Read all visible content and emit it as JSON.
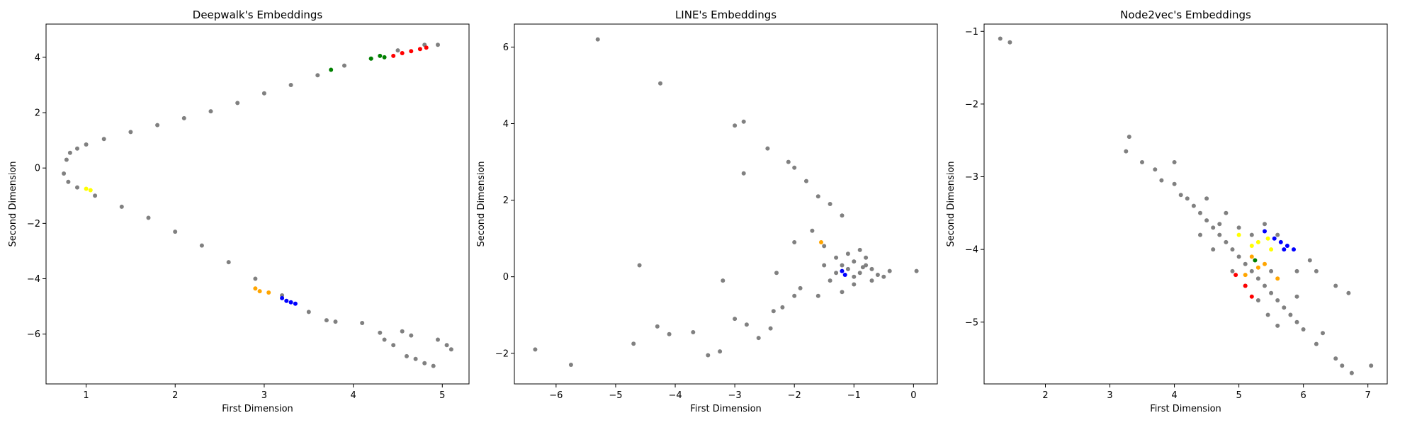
{
  "chart_data": [
    {
      "type": "scatter",
      "title": "Deepwalk's Embeddings",
      "xlabel": "First Dimension",
      "ylabel": "Second Dimension",
      "xlim": [
        0.55,
        5.3
      ],
      "ylim": [
        -7.8,
        5.2
      ],
      "xticks": [
        1,
        2,
        3,
        4,
        5
      ],
      "yticks": [
        -6,
        -4,
        -2,
        0,
        2,
        4
      ],
      "series": [
        {
          "color": "#808080",
          "points": [
            [
              0.78,
              0.3
            ],
            [
              0.82,
              0.55
            ],
            [
              0.9,
              0.7
            ],
            [
              1.0,
              0.85
            ],
            [
              1.2,
              1.05
            ],
            [
              1.5,
              1.3
            ],
            [
              1.8,
              1.55
            ],
            [
              2.1,
              1.8
            ],
            [
              2.4,
              2.05
            ],
            [
              2.7,
              2.35
            ],
            [
              3.0,
              2.7
            ],
            [
              3.3,
              3.0
            ],
            [
              3.6,
              3.35
            ],
            [
              3.9,
              3.7
            ],
            [
              4.2,
              3.95
            ],
            [
              4.5,
              4.25
            ],
            [
              4.8,
              4.45
            ],
            [
              4.95,
              4.45
            ],
            [
              0.75,
              -0.2
            ],
            [
              0.8,
              -0.5
            ],
            [
              0.9,
              -0.7
            ],
            [
              1.1,
              -1.0
            ],
            [
              1.4,
              -1.4
            ],
            [
              1.7,
              -1.8
            ],
            [
              2.0,
              -2.3
            ],
            [
              2.3,
              -2.8
            ],
            [
              2.6,
              -3.4
            ],
            [
              2.9,
              -4.0
            ],
            [
              3.2,
              -4.6
            ],
            [
              3.5,
              -5.2
            ],
            [
              3.7,
              -5.5
            ],
            [
              3.8,
              -5.55
            ],
            [
              4.1,
              -5.6
            ],
            [
              4.3,
              -5.95
            ],
            [
              4.35,
              -6.2
            ],
            [
              4.45,
              -6.4
            ],
            [
              4.55,
              -5.9
            ],
            [
              4.6,
              -6.8
            ],
            [
              4.7,
              -6.9
            ],
            [
              4.8,
              -7.05
            ],
            [
              4.9,
              -7.15
            ],
            [
              4.95,
              -6.2
            ],
            [
              5.05,
              -6.4
            ],
            [
              5.1,
              -6.55
            ],
            [
              4.65,
              -6.05
            ]
          ]
        },
        {
          "color": "#ff0000",
          "points": [
            [
              4.45,
              4.05
            ],
            [
              4.55,
              4.15
            ],
            [
              4.65,
              4.22
            ],
            [
              4.75,
              4.3
            ],
            [
              4.82,
              4.35
            ]
          ]
        },
        {
          "color": "#008000",
          "points": [
            [
              3.75,
              3.55
            ],
            [
              4.2,
              3.95
            ],
            [
              4.3,
              4.05
            ],
            [
              4.35,
              4.0
            ]
          ]
        },
        {
          "color": "#0000ff",
          "points": [
            [
              3.2,
              -4.7
            ],
            [
              3.25,
              -4.8
            ],
            [
              3.3,
              -4.85
            ],
            [
              3.35,
              -4.9
            ]
          ]
        },
        {
          "color": "#ffa500",
          "points": [
            [
              2.9,
              -4.35
            ],
            [
              2.95,
              -4.45
            ],
            [
              3.05,
              -4.5
            ]
          ]
        },
        {
          "color": "#ffff00",
          "points": [
            [
              1.0,
              -0.75
            ],
            [
              1.05,
              -0.8
            ]
          ]
        }
      ]
    },
    {
      "type": "scatter",
      "title": "LINE's Embeddings",
      "xlabel": "First Dimension",
      "ylabel": "Second Dimension",
      "xlim": [
        -6.7,
        0.4
      ],
      "ylim": [
        -2.8,
        6.6
      ],
      "xticks": [
        -6,
        -5,
        -4,
        -3,
        -2,
        -1,
        0
      ],
      "yticks": [
        -2,
        0,
        2,
        4,
        6
      ],
      "series": [
        {
          "color": "#808080",
          "points": [
            [
              -5.3,
              6.2
            ],
            [
              -4.25,
              5.05
            ],
            [
              -3.0,
              3.95
            ],
            [
              -2.85,
              4.05
            ],
            [
              -2.85,
              2.7
            ],
            [
              -6.35,
              -1.9
            ],
            [
              -5.75,
              -2.3
            ],
            [
              -4.6,
              0.3
            ],
            [
              -4.7,
              -1.75
            ],
            [
              -4.3,
              -1.3
            ],
            [
              -4.1,
              -1.5
            ],
            [
              -3.7,
              -1.45
            ],
            [
              -3.45,
              -2.05
            ],
            [
              -3.2,
              -0.1
            ],
            [
              -3.25,
              -1.95
            ],
            [
              -3.0,
              -1.1
            ],
            [
              -2.8,
              -1.25
            ],
            [
              -2.6,
              -1.6
            ],
            [
              -2.4,
              -1.35
            ],
            [
              -2.35,
              -0.9
            ],
            [
              -2.2,
              -0.8
            ],
            [
              -2.0,
              -0.5
            ],
            [
              -1.9,
              -0.3
            ],
            [
              -1.6,
              -0.5
            ],
            [
              -2.45,
              3.35
            ],
            [
              -2.1,
              3.0
            ],
            [
              -2.0,
              2.85
            ],
            [
              -1.8,
              2.5
            ],
            [
              -1.6,
              2.1
            ],
            [
              -1.4,
              1.9
            ],
            [
              -1.2,
              1.6
            ],
            [
              -2.3,
              0.1
            ],
            [
              -2.0,
              0.9
            ],
            [
              -1.7,
              1.2
            ],
            [
              -1.5,
              0.8
            ],
            [
              -1.3,
              0.5
            ],
            [
              -1.2,
              0.3
            ],
            [
              -1.1,
              0.2
            ],
            [
              -1.0,
              0.4
            ],
            [
              -0.9,
              0.1
            ],
            [
              -0.8,
              0.3
            ],
            [
              -0.7,
              0.2
            ],
            [
              -0.6,
              0.05
            ],
            [
              -0.5,
              0.0
            ],
            [
              -0.4,
              0.15
            ],
            [
              0.05,
              0.15
            ],
            [
              -1.0,
              -0.2
            ],
            [
              -0.8,
              0.5
            ],
            [
              -1.3,
              0.1
            ],
            [
              -1.1,
              0.6
            ],
            [
              -1.4,
              -0.1
            ],
            [
              -0.9,
              0.7
            ],
            [
              -1.2,
              -0.4
            ],
            [
              -0.7,
              -0.1
            ],
            [
              -1.5,
              0.3
            ],
            [
              -1.0,
              0.0
            ],
            [
              -0.85,
              0.25
            ]
          ]
        },
        {
          "color": "#0000ff",
          "points": [
            [
              -1.2,
              0.15
            ],
            [
              -1.15,
              0.05
            ]
          ]
        },
        {
          "color": "#ffa500",
          "points": [
            [
              -1.55,
              0.9
            ]
          ]
        }
      ]
    },
    {
      "type": "scatter",
      "title": "Node2vec's Embeddings",
      "xlabel": "First Dimension",
      "ylabel": "Second Dimension",
      "xlim": [
        1.05,
        7.3
      ],
      "ylim": [
        -5.85,
        -0.9
      ],
      "xticks": [
        2,
        3,
        4,
        5,
        6,
        7
      ],
      "yticks": [
        -5,
        -4,
        -3,
        -2,
        -1
      ],
      "series": [
        {
          "color": "#808080",
          "points": [
            [
              1.3,
              -1.1
            ],
            [
              1.45,
              -1.15
            ],
            [
              3.3,
              -2.45
            ],
            [
              3.25,
              -2.65
            ],
            [
              3.5,
              -2.8
            ],
            [
              3.7,
              -2.9
            ],
            [
              3.8,
              -3.05
            ],
            [
              4.0,
              -2.8
            ],
            [
              4.0,
              -3.1
            ],
            [
              4.1,
              -3.25
            ],
            [
              4.2,
              -3.3
            ],
            [
              4.3,
              -3.4
            ],
            [
              4.4,
              -3.5
            ],
            [
              4.5,
              -3.6
            ],
            [
              4.6,
              -3.7
            ],
            [
              4.7,
              -3.8
            ],
            [
              4.8,
              -3.9
            ],
            [
              4.9,
              -4.0
            ],
            [
              5.0,
              -4.1
            ],
            [
              5.1,
              -4.2
            ],
            [
              5.2,
              -4.3
            ],
            [
              5.3,
              -4.4
            ],
            [
              5.4,
              -4.5
            ],
            [
              5.5,
              -4.6
            ],
            [
              5.6,
              -4.7
            ],
            [
              5.7,
              -4.8
            ],
            [
              5.8,
              -4.9
            ],
            [
              5.9,
              -5.0
            ],
            [
              6.0,
              -5.1
            ],
            [
              6.2,
              -5.3
            ],
            [
              6.5,
              -5.5
            ],
            [
              6.6,
              -5.6
            ],
            [
              6.75,
              -5.7
            ],
            [
              7.05,
              -5.6
            ],
            [
              6.3,
              -5.15
            ],
            [
              6.7,
              -4.6
            ],
            [
              6.5,
              -4.5
            ],
            [
              6.2,
              -4.3
            ],
            [
              6.1,
              -4.15
            ],
            [
              5.9,
              -4.3
            ],
            [
              5.5,
              -4.3
            ],
            [
              4.8,
              -3.5
            ],
            [
              4.7,
              -3.65
            ],
            [
              5.0,
              -3.7
            ],
            [
              5.2,
              -3.8
            ],
            [
              4.6,
              -4.0
            ],
            [
              4.9,
              -4.3
            ],
            [
              5.1,
              -4.5
            ],
            [
              5.3,
              -4.7
            ],
            [
              5.45,
              -4.9
            ],
            [
              5.6,
              -5.05
            ],
            [
              4.4,
              -3.8
            ],
            [
              4.5,
              -3.3
            ],
            [
              5.6,
              -3.8
            ],
            [
              5.4,
              -3.65
            ],
            [
              5.9,
              -4.65
            ]
          ]
        },
        {
          "color": "#0000ff",
          "points": [
            [
              5.55,
              -3.85
            ],
            [
              5.65,
              -3.9
            ],
            [
              5.75,
              -3.95
            ],
            [
              5.85,
              -4.0
            ],
            [
              5.7,
              -4.0
            ],
            [
              5.4,
              -3.75
            ]
          ]
        },
        {
          "color": "#ffff00",
          "points": [
            [
              5.0,
              -3.8
            ],
            [
              5.3,
              -3.9
            ],
            [
              5.5,
              -4.0
            ],
            [
              5.2,
              -3.95
            ],
            [
              5.45,
              -3.85
            ]
          ]
        },
        {
          "color": "#ffa500",
          "points": [
            [
              5.2,
              -4.1
            ],
            [
              5.3,
              -4.25
            ],
            [
              5.4,
              -4.2
            ],
            [
              5.1,
              -4.35
            ],
            [
              5.6,
              -4.4
            ]
          ]
        },
        {
          "color": "#008000",
          "points": [
            [
              5.25,
              -4.15
            ]
          ]
        },
        {
          "color": "#ff0000",
          "points": [
            [
              4.95,
              -4.35
            ],
            [
              5.1,
              -4.5
            ],
            [
              5.2,
              -4.65
            ]
          ]
        }
      ]
    }
  ]
}
